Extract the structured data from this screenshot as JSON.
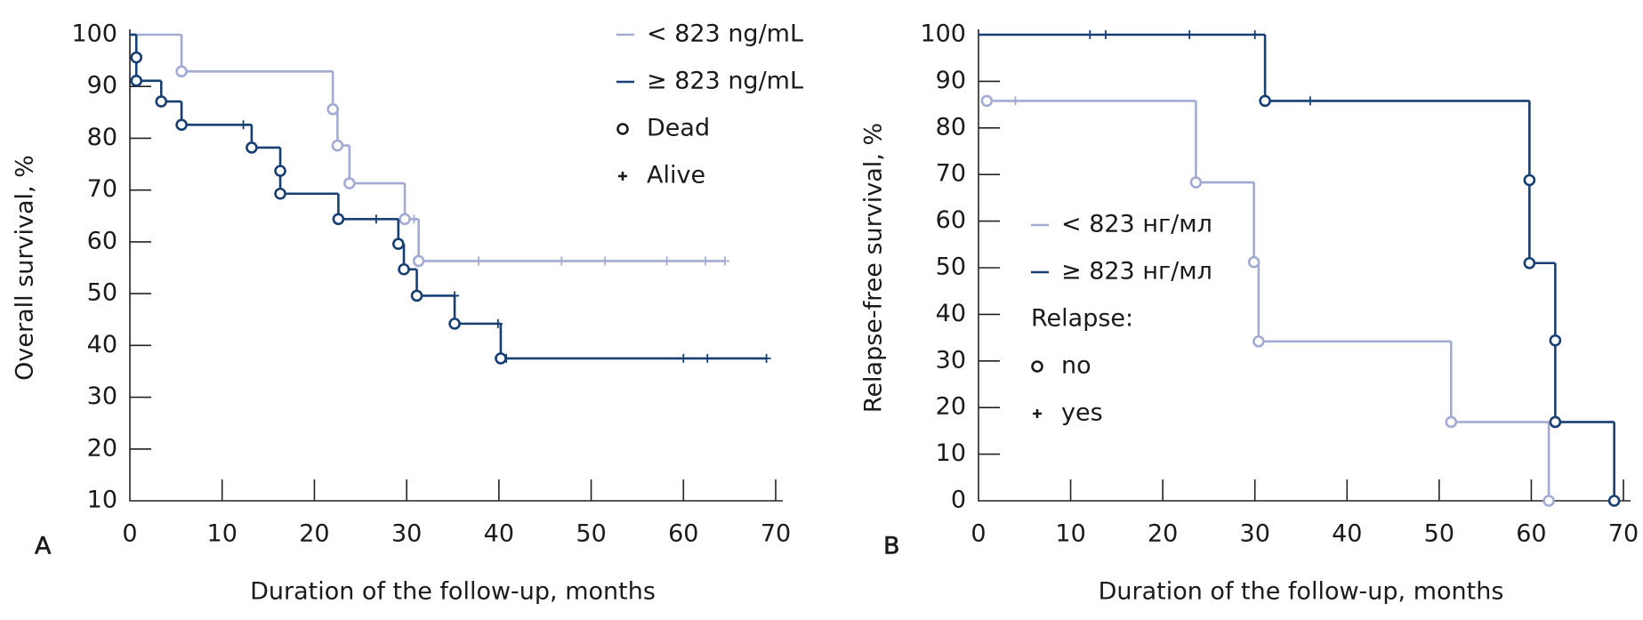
{
  "chart_data": [
    {
      "type": "step",
      "panel_label": "A",
      "x_label": "Duration of the follow-up, months",
      "y_label": "Overall survival, %",
      "xlim": [
        0,
        70
      ],
      "xticks": [
        0,
        10,
        20,
        30,
        40,
        50,
        60,
        70
      ],
      "ylim": [
        10,
        100
      ],
      "yticks": [
        10,
        20,
        30,
        40,
        50,
        60,
        70,
        80,
        90,
        100
      ],
      "legend": "upper right",
      "dead_label": "Dead",
      "alive_label": "Alive",
      "series": [
        {
          "name": "< 823 ng/mL",
          "color": "#a3abd2",
          "x": [
            0,
            5.6,
            22.0,
            22.5,
            23.8,
            29.8,
            31.3,
            64.5
          ],
          "values": [
            100,
            92.9,
            85.6,
            78.6,
            71.3,
            64.4,
            56.3,
            56.3
          ],
          "dead": {
            "x": [
              5.6,
              22.0,
              22.5,
              23.8,
              29.8,
              31.3
            ],
            "values": [
              92.9,
              85.6,
              78.6,
              71.3,
              64.4,
              56.3
            ]
          },
          "alive": {
            "x": [
              30.8,
              37.8,
              46.8,
              51.5,
              58.2,
              62.4,
              64.5
            ],
            "values": [
              64.4,
              56.3,
              56.3,
              56.3,
              56.3,
              56.3,
              56.3
            ]
          }
        },
        {
          "name": "≥ 823 ng/mL",
          "color": "#173f73",
          "x": [
            0,
            0.7,
            0.7,
            3.4,
            5.6,
            13.2,
            16.3,
            16.3,
            22.6,
            29.1,
            29.7,
            31.1,
            35.2,
            40.2,
            69
          ],
          "values": [
            100,
            95.6,
            91.1,
            87.1,
            82.6,
            78.2,
            73.7,
            69.3,
            64.4,
            59.6,
            54.7,
            49.6,
            44.2,
            37.5,
            37.5
          ],
          "dead": {
            "x": [
              0.7,
              0.7,
              3.4,
              5.6,
              13.2,
              16.3,
              16.3,
              22.6,
              29.1,
              29.7,
              31.1,
              35.2,
              40.2
            ],
            "values": [
              95.6,
              91.1,
              87.1,
              82.6,
              78.2,
              73.7,
              69.3,
              64.4,
              59.6,
              54.7,
              49.6,
              44.2,
              37.5
            ]
          },
          "alive": {
            "x": [
              12.3,
              26.7,
              35.2,
              39.9,
              40.8,
              60,
              62.6,
              69
            ],
            "values": [
              82.6,
              64.4,
              49.6,
              44.2,
              37.5,
              37.5,
              37.5,
              37.5
            ]
          }
        }
      ]
    },
    {
      "type": "step",
      "panel_label": "B",
      "x_label": "Duration of the follow-up, months",
      "y_label": "Relapse-free survival, %",
      "xlim": [
        0,
        70
      ],
      "xticks": [
        0,
        10,
        20,
        30,
        40,
        50,
        60,
        70
      ],
      "ylim": [
        0,
        100
      ],
      "yticks": [
        0,
        10,
        20,
        30,
        40,
        50,
        60,
        70,
        80,
        90,
        100
      ],
      "legend": "center left",
      "legend_title": "Relapse:",
      "dead_label": "no",
      "alive_label": "yes",
      "series": [
        {
          "name": "< 823 нг/мл",
          "color": "#a3abd2",
          "x": [
            0.9,
            23.6,
            29.9,
            30.4,
            51.3,
            61.9
          ],
          "values": [
            85.8,
            68.3,
            51.2,
            34.2,
            16.9,
            0
          ],
          "dead": {
            "x": [
              0.9,
              23.6,
              29.9,
              30.4,
              51.3,
              61.9
            ],
            "values": [
              85.8,
              68.3,
              51.2,
              34.2,
              16.9,
              0
            ]
          },
          "alive": {
            "x": [
              4.0
            ],
            "values": [
              85.8
            ]
          }
        },
        {
          "name": "≥ 823 нг/мл",
          "color": "#173f73",
          "x": [
            0,
            31.1,
            59.8,
            59.8,
            62.6,
            62.6,
            69
          ],
          "values": [
            100,
            85.8,
            68.8,
            51.0,
            34.4,
            16.9,
            0
          ],
          "dead": {
            "x": [
              31.1,
              59.8,
              59.8,
              62.6,
              62.6,
              69
            ],
            "values": [
              85.8,
              68.8,
              51.0,
              34.4,
              16.9,
              0
            ]
          },
          "alive": {
            "x": [
              12.1,
              13.8,
              22.9,
              30.0,
              36.0
            ],
            "values": [
              100,
              100,
              100,
              100,
              85.8
            ]
          }
        }
      ]
    }
  ]
}
